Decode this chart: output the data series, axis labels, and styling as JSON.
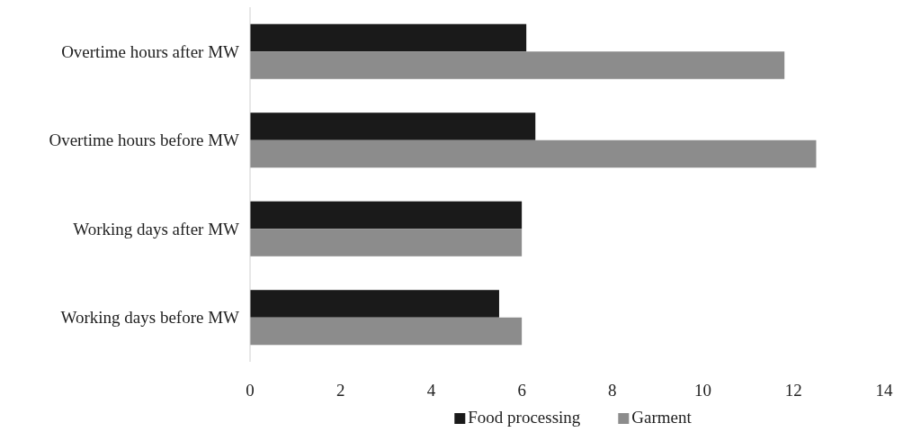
{
  "chart_data": {
    "type": "bar",
    "orientation": "horizontal",
    "categories": [
      "Overtime hours after MW",
      "Overtime hours before MW",
      "Working days after MW",
      "Working days before MW"
    ],
    "series": [
      {
        "name": "Food processing",
        "color": "#1a1a1a",
        "values": [
          6.1,
          6.3,
          6.0,
          5.5
        ]
      },
      {
        "name": "Garment",
        "color": "#8c8c8c",
        "values": [
          11.8,
          12.5,
          6.0,
          6.0
        ]
      }
    ],
    "xlim": [
      0,
      14
    ],
    "xticks": [
      0,
      2,
      4,
      6,
      8,
      10,
      12,
      14
    ],
    "grid": false,
    "legend": "bottom"
  }
}
